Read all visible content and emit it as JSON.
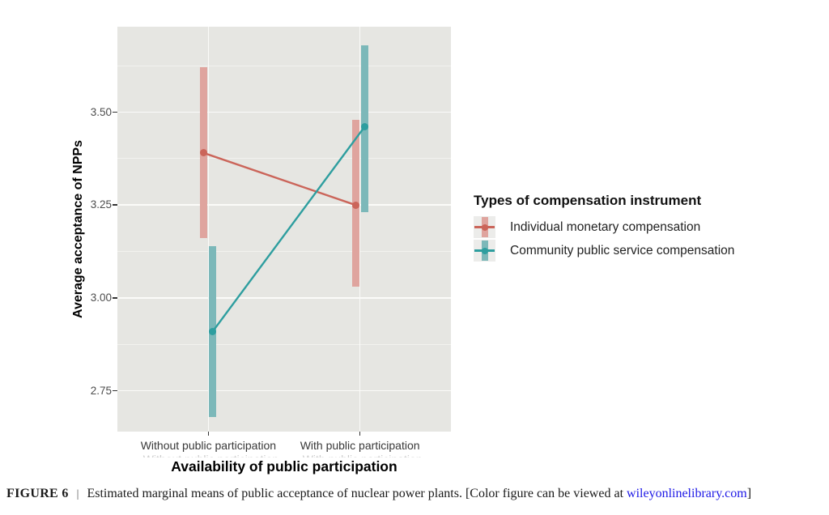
{
  "chart_data": {
    "type": "line",
    "subtype": "interaction plot with error bars (estimated marginal means)",
    "xlabel": "Availability of public participation",
    "ylabel": "Average acceptance of NPPs",
    "categories": [
      "Without public participation",
      "With public participation"
    ],
    "yticks": [
      2.75,
      3.0,
      3.25,
      3.5
    ],
    "ytick_labels": [
      "2.75",
      "3.00",
      "3.25",
      "3.50"
    ],
    "ylim": [
      2.64,
      3.73
    ],
    "grid": {
      "major": true,
      "minor": true,
      "background": "gray panel, white gridlines"
    },
    "legend_position": "right",
    "legend_title": "Types of compensation instrument",
    "series": [
      {
        "name": "Individual monetary compensation",
        "color": "#cb655a",
        "fill": "#dfa49e",
        "means": [
          3.39,
          3.25
        ],
        "ci_low": [
          3.16,
          3.03
        ],
        "ci_high": [
          3.62,
          3.48
        ]
      },
      {
        "name": "Community public service compensation",
        "color": "#2e9e9f",
        "fill": "#7cb8b9",
        "means": [
          2.91,
          3.46
        ],
        "ci_low": [
          2.68,
          3.23
        ],
        "ci_high": [
          3.14,
          3.68
        ]
      }
    ]
  },
  "colors": {
    "panel_bg": "#e6e6e2",
    "grid_major": "#fbfbf9",
    "grid_minor": "rgba(251,251,249,0.55)",
    "tick_mark": "#333333",
    "y_tick_label": "#4d4d4d",
    "x_tick_label": "#383838",
    "legend_key_bg": "#ececea",
    "link": "#1d18e6"
  },
  "caption": {
    "figure_label": "FIGURE 6",
    "divider": "|",
    "body": "Estimated marginal means of public acceptance of nuclear power plants. [Color figure can be viewed at ",
    "link": "wileyonlinelibrary.com",
    "close": "]"
  }
}
